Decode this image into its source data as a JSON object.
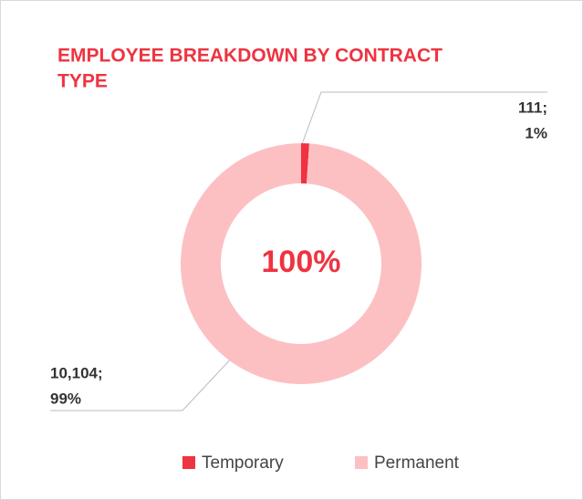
{
  "chart_data": {
    "type": "donut",
    "title_lines": [
      "EMPLOYEE BREAKDOWN BY CONTRACT",
      "TYPE"
    ],
    "center_label": "100%",
    "categories": [
      "Temporary",
      "Permanent"
    ],
    "values": [
      111,
      10104
    ],
    "value_labels": [
      "111;",
      "10,104;"
    ],
    "percent_labels": [
      "1%",
      "99%"
    ],
    "colors": [
      "#ef3340",
      "#fcc0c3"
    ]
  }
}
